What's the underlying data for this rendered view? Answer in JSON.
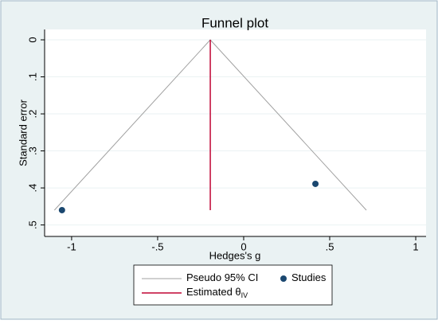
{
  "chart_data": {
    "type": "scatter",
    "title": "Funnel plot",
    "x_label": "Hedges's g",
    "y_label": "Standard error",
    "xlim": [
      -1.157,
      1.06
    ],
    "ylim": [
      -0.028,
      0.531
    ],
    "y_inverted": true,
    "xticks": [
      -1,
      {
        "value": -0.5,
        "label": "-.5"
      },
      0,
      {
        "value": 0.5,
        "label": ".5"
      },
      1
    ],
    "yticks": [
      0,
      {
        "value": 0.1,
        "label": ".1"
      },
      {
        "value": 0.2,
        "label": ".2"
      },
      {
        "value": 0.3,
        "label": ".3"
      },
      {
        "value": 0.4,
        "label": ".4"
      },
      {
        "value": 0.5,
        "label": ".5"
      }
    ],
    "grid": true,
    "series": [
      {
        "name": "Pseudo 95% CI",
        "kind": "line",
        "color": "#a0a0a0",
        "x": [
          -1.1,
          -0.194,
          0.713
        ],
        "values": [
          0.46,
          0,
          0.46
        ]
      },
      {
        "name": "Studies",
        "kind": "point",
        "color": "#1a476f",
        "x": [
          -1.056,
          0.417
        ],
        "values": [
          0.46,
          0.389
        ]
      },
      {
        "name": "Estimated θ",
        "name_subscript": "IV",
        "kind": "line",
        "color": "#c10534",
        "x": [
          -0.194,
          -0.194
        ],
        "values": [
          0,
          0.46
        ]
      }
    ]
  }
}
